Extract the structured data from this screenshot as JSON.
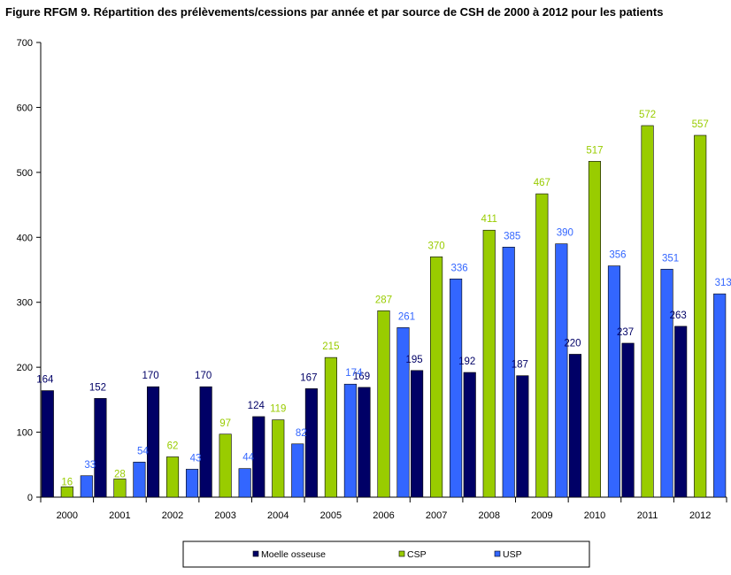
{
  "title": "Figure RFGM 9. Répartition des prélèvements/cessions par année et par source de CSH de 2000 à 2012 pour les patients",
  "chart_data": {
    "type": "bar",
    "title": "Figure RFGM 9. Répartition des prélèvements/cessions par année et par source de CSH de 2000 à 2012 pour les patients",
    "xlabel": "",
    "ylabel": "",
    "categories": [
      "2000",
      "2001",
      "2002",
      "2003",
      "2004",
      "2005",
      "2006",
      "2007",
      "2008",
      "2009",
      "2010",
      "2011",
      "2012"
    ],
    "ylim": [
      0,
      700
    ],
    "yticks": [
      0,
      100,
      200,
      300,
      400,
      500,
      600,
      700
    ],
    "grid": false,
    "legend_position": "bottom",
    "series": [
      {
        "name": "Moelle osseuse",
        "color": "#000066",
        "label_color": "#000066",
        "values": [
          164,
          152,
          170,
          170,
          124,
          167,
          169,
          195,
          192,
          187,
          220,
          237,
          263
        ]
      },
      {
        "name": "CSP",
        "color": "#99cc00",
        "label_color": "#99cc00",
        "values": [
          16,
          28,
          62,
          97,
          119,
          215,
          287,
          370,
          411,
          467,
          517,
          572,
          557
        ]
      },
      {
        "name": "USP",
        "color": "#3366ff",
        "label_color": "#3366ff",
        "values": [
          33,
          54,
          43,
          44,
          82,
          174,
          261,
          336,
          385,
          390,
          356,
          351,
          313
        ]
      }
    ]
  }
}
